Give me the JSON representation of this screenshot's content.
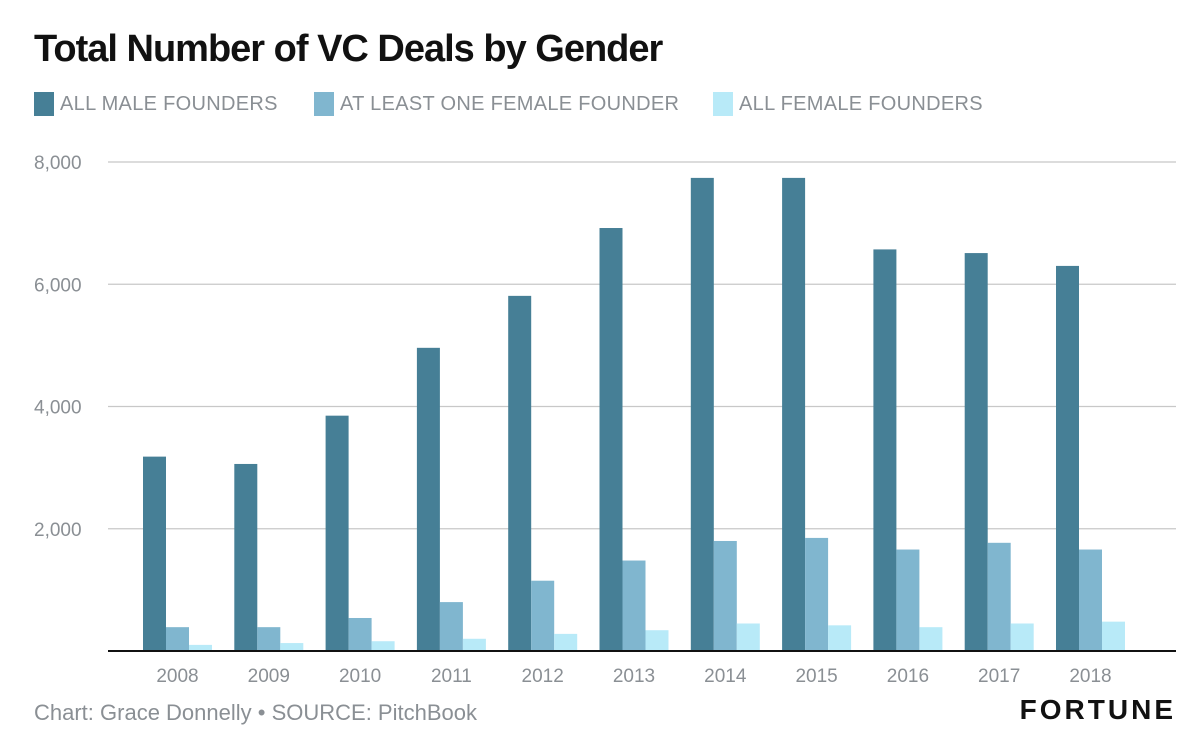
{
  "title": "Total Number of VC Deals by Gender",
  "footer": {
    "credit": "Chart: Grace Donnelly • SOURCE: PitchBook",
    "brand": "FORTUNE"
  },
  "colors": {
    "all_male": "#467f96",
    "at_least_one_female": "#80b6cf",
    "all_female": "#b8eaf8",
    "grid": "#c8c8c8",
    "axis": "#111111",
    "text_muted": "#8a8f94"
  },
  "chart_data": {
    "type": "bar",
    "title": "Total Number of VC Deals by Gender",
    "xlabel": "",
    "ylabel": "",
    "ylim": [
      0,
      8000
    ],
    "yticks": [
      "2,000",
      "4,000",
      "6,000",
      "8,000"
    ],
    "ytick_values": [
      2000,
      4000,
      6000,
      8000
    ],
    "grid": true,
    "legend_position": "top",
    "categories": [
      "2008",
      "2009",
      "2010",
      "2011",
      "2012",
      "2013",
      "2014",
      "2015",
      "2016",
      "2017",
      "2018"
    ],
    "series": [
      {
        "name": "ALL MALE FOUNDERS",
        "values": [
          3180,
          3060,
          3850,
          4960,
          5810,
          6920,
          7740,
          7740,
          6570,
          6510,
          6300
        ]
      },
      {
        "name": "AT LEAST ONE FEMALE FOUNDER",
        "values": [
          390,
          390,
          540,
          800,
          1150,
          1480,
          1800,
          1850,
          1660,
          1770,
          1660
        ]
      },
      {
        "name": "ALL FEMALE FOUNDERS",
        "values": [
          100,
          130,
          160,
          200,
          280,
          340,
          450,
          420,
          390,
          450,
          480
        ]
      }
    ]
  }
}
